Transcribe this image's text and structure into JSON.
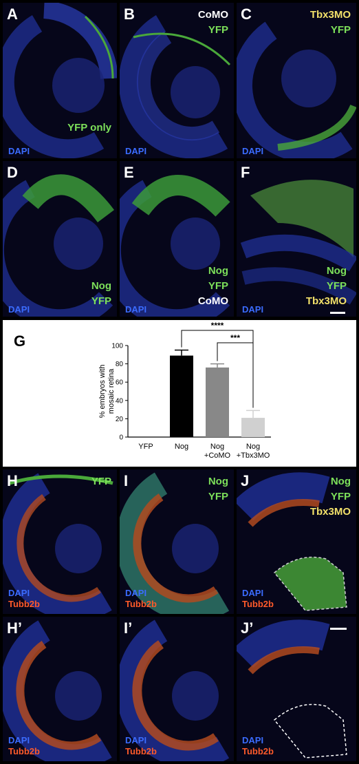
{
  "panels": {
    "A": {
      "label": "A",
      "dapi": "DAPI",
      "tags": [
        "YFP only"
      ]
    },
    "B": {
      "label": "B",
      "dapi": "DAPI",
      "tags": [
        "CoMO",
        "YFP"
      ]
    },
    "C": {
      "label": "C",
      "dapi": "DAPI",
      "tags": [
        "Tbx3MO",
        "YFP"
      ]
    },
    "D": {
      "label": "D",
      "dapi": "DAPI",
      "tags": [
        "Nog",
        "YFP"
      ]
    },
    "E": {
      "label": "E",
      "dapi": "DAPI",
      "tags": [
        "Nog",
        "YFP",
        "CoMO"
      ]
    },
    "F": {
      "label": "F",
      "dapi": "DAPI",
      "tags": [
        "Nog",
        "YFP",
        "Tbx3MO"
      ]
    },
    "H": {
      "label": "H",
      "dapi": "DAPI",
      "tubb": "Tubb2b",
      "tags": [
        "YFP"
      ]
    },
    "I": {
      "label": "I",
      "dapi": "DAPI",
      "tubb": "Tubb2b",
      "tags": [
        "Nog",
        "YFP"
      ]
    },
    "J": {
      "label": "J",
      "dapi": "DAPI",
      "tubb": "Tubb2b",
      "tags": [
        "Nog",
        "YFP",
        "Tbx3MO"
      ]
    },
    "H2": {
      "label": "H’",
      "dapi": "DAPI",
      "tubb": "Tubb2b"
    },
    "I2": {
      "label": "I’",
      "dapi": "DAPI",
      "tubb": "Tubb2b"
    },
    "J2": {
      "label": "J’",
      "dapi": "DAPI",
      "tubb": "Tubb2b"
    }
  },
  "colors": {
    "dapi": "#3b6cff",
    "yfp": "#7de05a",
    "tubb": "#ff5a2a",
    "morpholino_tbx3": "#f2e06a",
    "morpholino_co": "#ffffff"
  },
  "chart_data": {
    "type": "bar",
    "panel_label": "G",
    "categories": [
      "YFP",
      "Nog",
      "Nog\n+CoMO",
      "Nog\n+Tbx3MO"
    ],
    "values": [
      0,
      89,
      76,
      21
    ],
    "errors": [
      0,
      6,
      4,
      8
    ],
    "bar_colors": [
      "#000000",
      "#000000",
      "#888888",
      "#d0d0d0"
    ],
    "ylabel": "% embryos with mosaic retina",
    "ylim": [
      0,
      100
    ],
    "yticks": [
      0,
      20,
      40,
      60,
      80,
      100
    ],
    "significance": [
      {
        "from": 1,
        "to": 3,
        "label": "****"
      },
      {
        "from": 2,
        "to": 3,
        "label": "***"
      }
    ]
  }
}
